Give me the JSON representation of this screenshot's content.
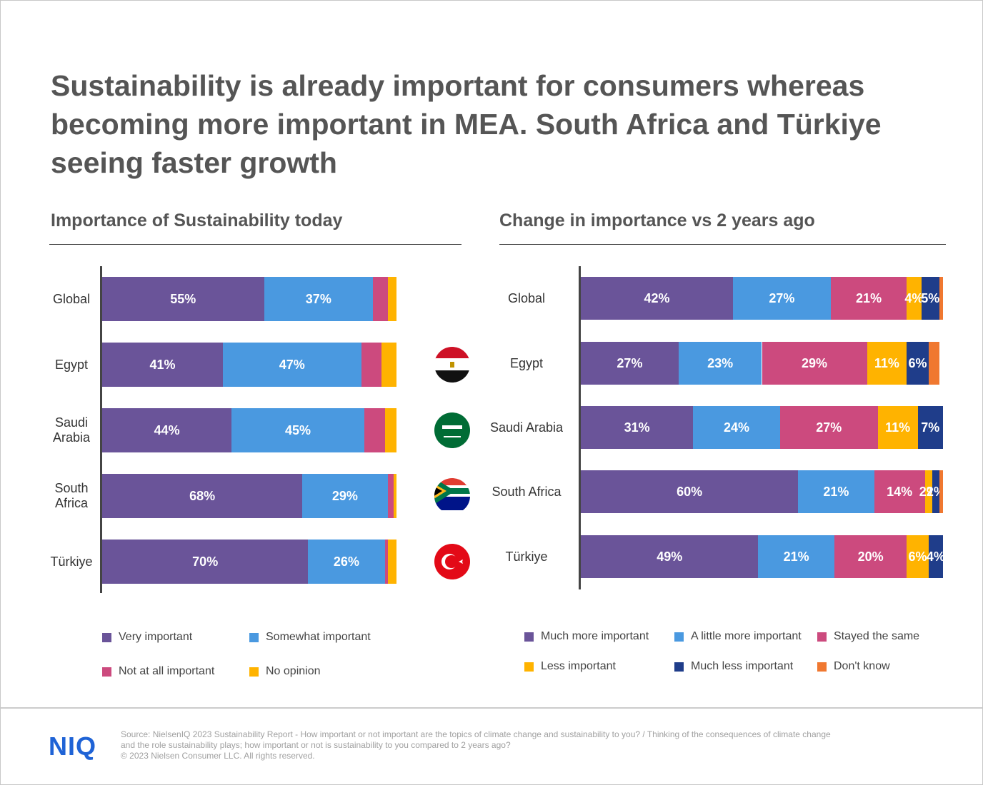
{
  "headline": "Sustainability is already important for consumers whereas becoming more important in MEA. South Africa and Türkiye seeing faster growth",
  "logo": "NIQ",
  "source": "Source: NielsenIQ 2023 Sustainability Report - How important or not important are the topics of climate change and sustainability to you? / Thinking of the consequences of climate change and the role sustainability plays; how important or not is sustainability to you compared to 2 years ago?",
  "copyright": "© 2023 Nielsen Consumer LLC. All rights reserved.",
  "chart_data": [
    {
      "type": "stacked-bar-horizontal",
      "title": "Importance of Sustainability today",
      "categories": [
        "Global",
        "Egypt",
        "Saudi Arabia",
        "South Africa",
        "Türkiye"
      ],
      "xlim": [
        0,
        100
      ],
      "series": [
        {
          "name": "Very important",
          "color": "#6a5499",
          "values": [
            55,
            41,
            44,
            68,
            70
          ],
          "value_labels": [
            "55%",
            "41%",
            "44%",
            "68%",
            "70%"
          ]
        },
        {
          "name": "Somewhat important",
          "color": "#4a99e0",
          "values": [
            37,
            47,
            45,
            29,
            26
          ],
          "value_labels": [
            "37%",
            "47%",
            "45%",
            "29%",
            "26%"
          ]
        },
        {
          "name": "Not at all important",
          "color": "#cc4a7e",
          "values": [
            5,
            7,
            7,
            2,
            1
          ]
        },
        {
          "name": "No opinion",
          "color": "#ffb300",
          "values": [
            3,
            5,
            4,
            1,
            3
          ]
        }
      ]
    },
    {
      "type": "stacked-bar-horizontal",
      "title": "Change in importance vs 2 years ago",
      "categories": [
        "Global",
        "Egypt",
        "Saudi Arabia",
        "South Africa",
        "Türkiye"
      ],
      "xlim": [
        0,
        100
      ],
      "series": [
        {
          "name": "Much more important",
          "color": "#6a5499",
          "values": [
            42,
            27,
            31,
            60,
            49
          ],
          "value_labels": [
            "42%",
            "27%",
            "31%",
            "60%",
            "49%"
          ]
        },
        {
          "name": "A little more important",
          "color": "#4a99e0",
          "values": [
            27,
            23,
            24,
            21,
            21
          ],
          "value_labels": [
            "27%",
            "23%",
            "24%",
            "21%",
            "21%"
          ]
        },
        {
          "name": "Stayed the same",
          "color": "#cc4a7e",
          "values": [
            21,
            29,
            27,
            14,
            20
          ],
          "value_labels": [
            "21%",
            "29%",
            "27%",
            "14%",
            "20%"
          ]
        },
        {
          "name": "Less important",
          "color": "#ffb300",
          "values": [
            4,
            11,
            11,
            2,
            6
          ],
          "value_labels": [
            "4%",
            "11%",
            "11%",
            "2%",
            "6%"
          ]
        },
        {
          "name": "Much less important",
          "color": "#1f3d8a",
          "values": [
            5,
            6,
            7,
            2,
            4
          ],
          "value_labels": [
            "5%",
            "6%",
            "7%",
            "2%",
            "4%"
          ]
        },
        {
          "name": "Don't know",
          "color": "#f07830",
          "values": [
            1,
            3,
            0,
            1,
            0
          ]
        }
      ]
    }
  ]
}
